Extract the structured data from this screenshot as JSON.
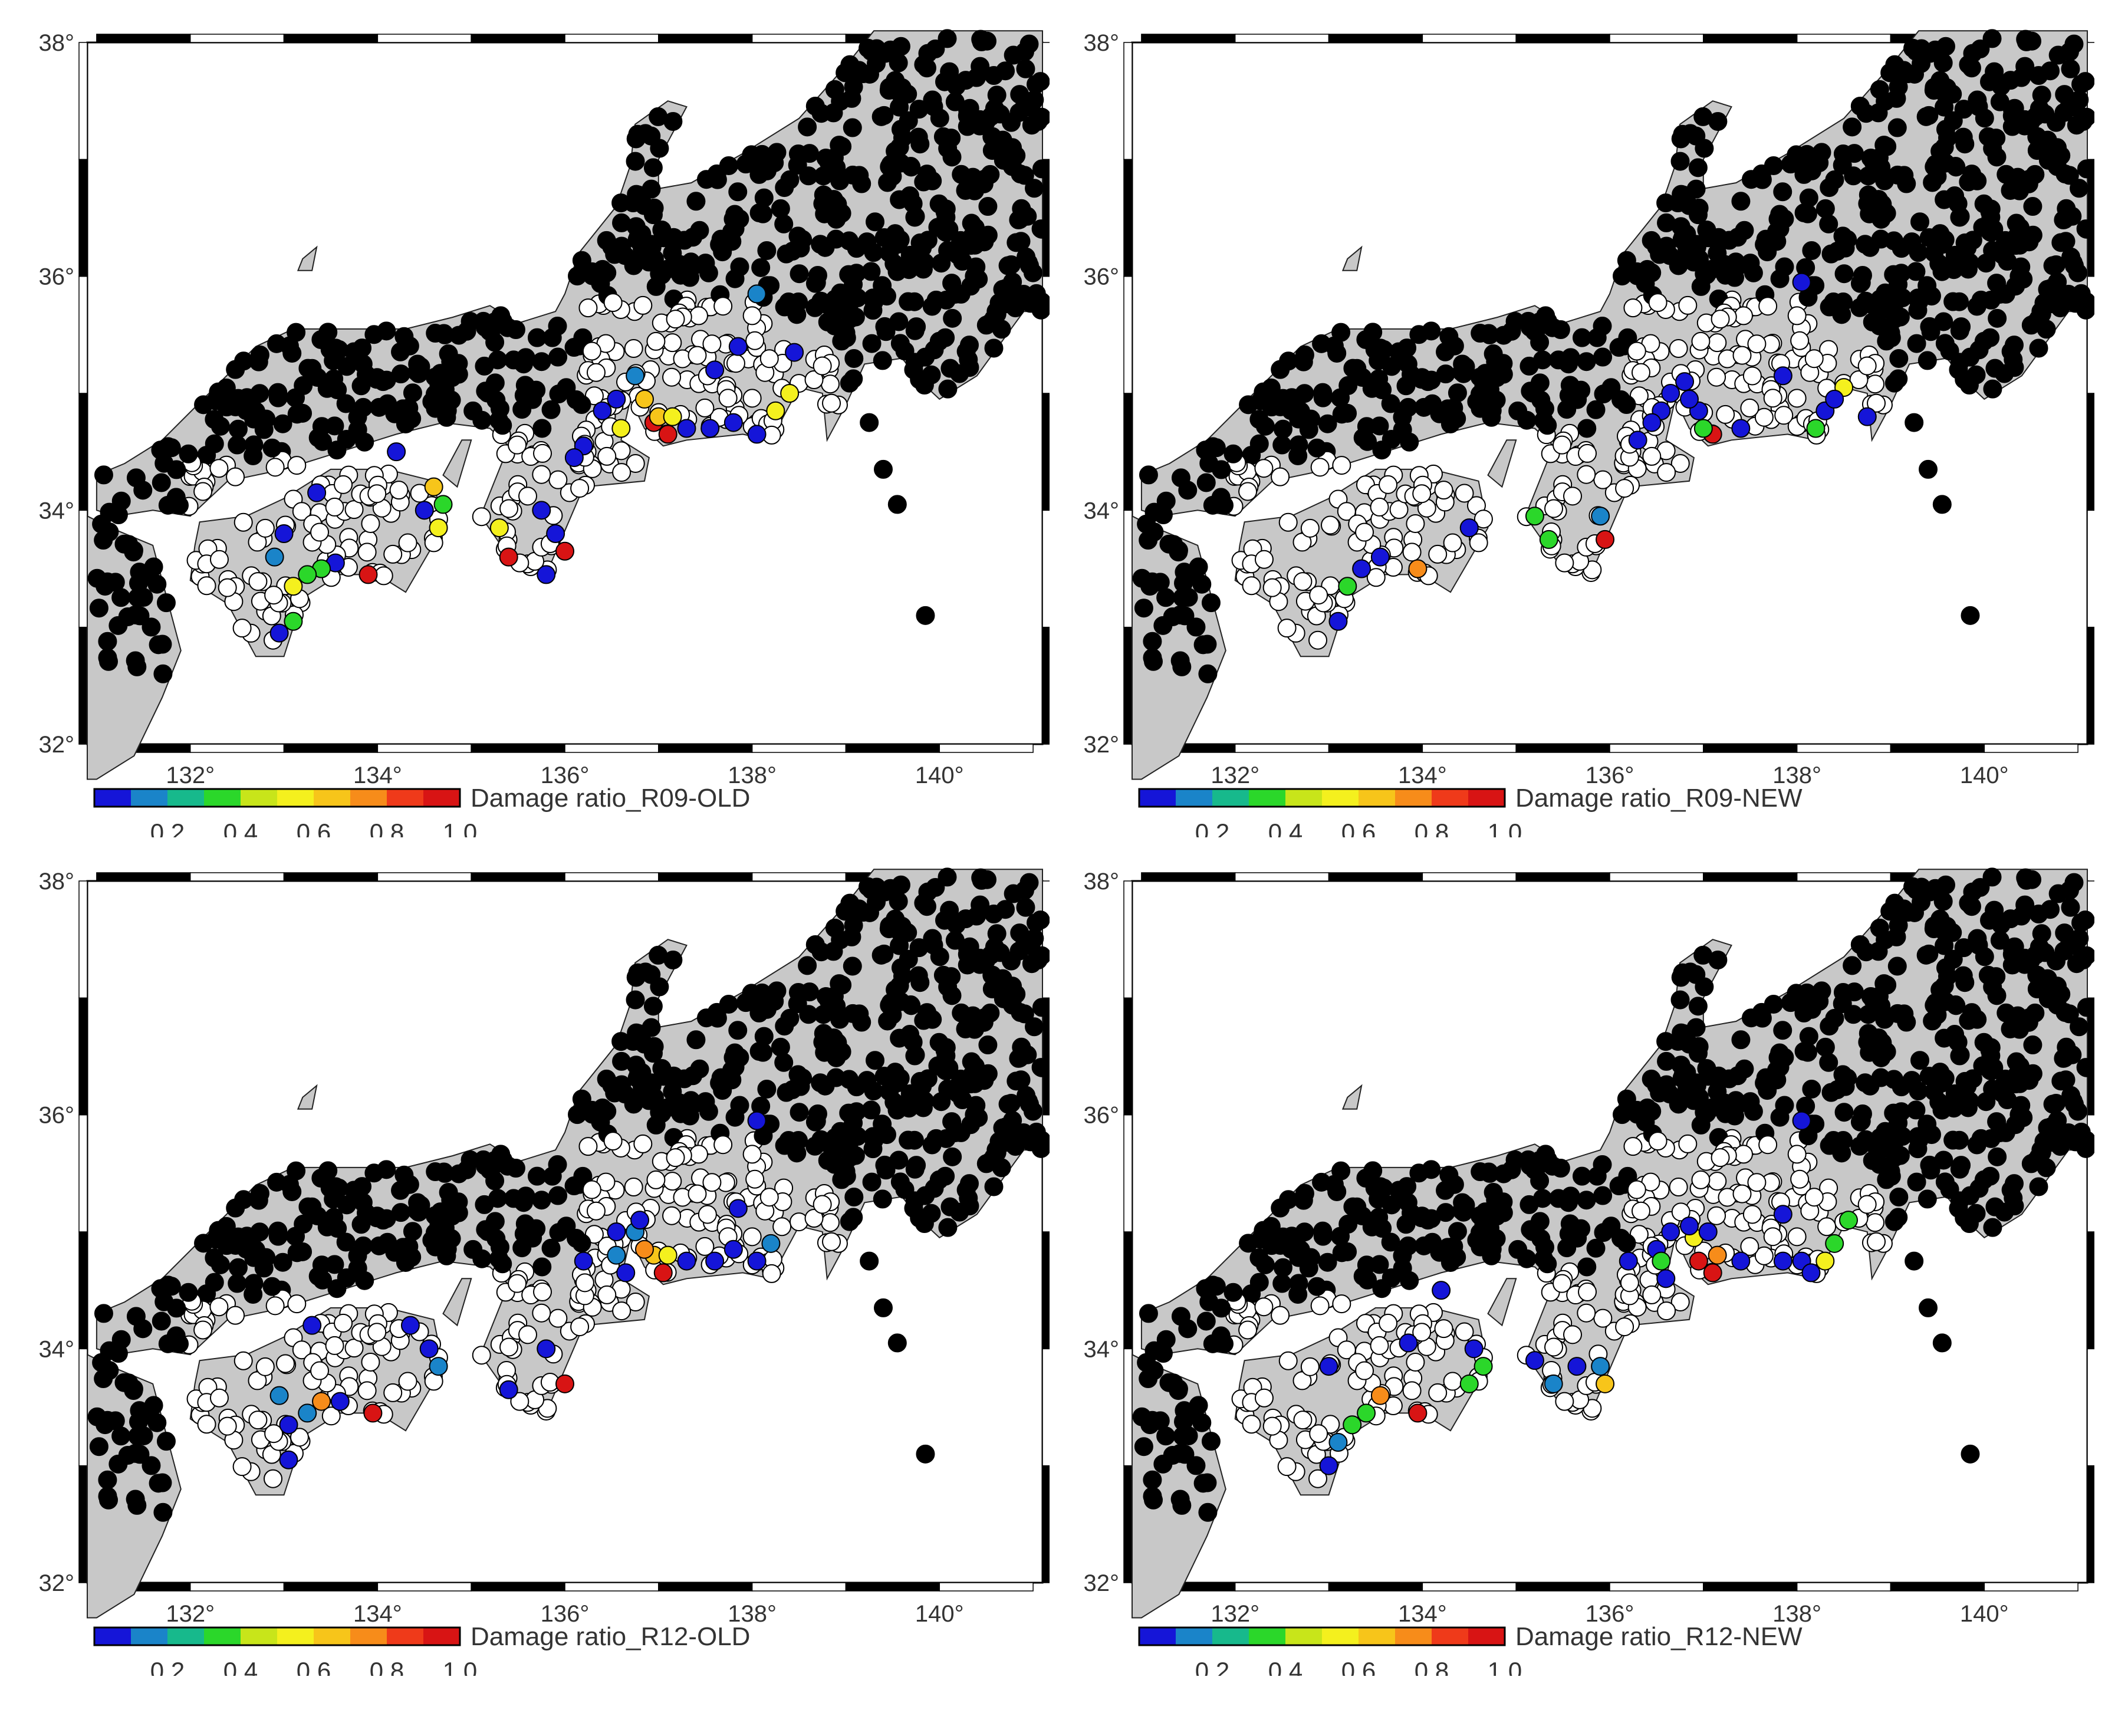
{
  "axes": {
    "lat_ticks": [
      {
        "value": 32,
        "label": "32°"
      },
      {
        "value": 34,
        "label": "34°"
      },
      {
        "value": 36,
        "label": "36°"
      },
      {
        "value": 38,
        "label": "38°"
      }
    ],
    "lon_ticks": [
      {
        "value": 132,
        "label": "132°"
      },
      {
        "value": 134,
        "label": "134°"
      },
      {
        "value": 136,
        "label": "136°"
      },
      {
        "value": 138,
        "label": "138°"
      },
      {
        "value": 140,
        "label": "140°"
      }
    ],
    "lon_range": [
      130.9,
      141.1
    ],
    "lat_range": [
      32,
      38
    ]
  },
  "colorbar": {
    "colors": [
      "#1515d8",
      "#1a84c9",
      "#17b98c",
      "#2bd72a",
      "#c8e51a",
      "#f4f01e",
      "#f7c51a",
      "#f78c1a",
      "#ef3a1a",
      "#d81414"
    ],
    "tick_labels": [
      "0.2",
      "0.4",
      "0.6",
      "0.8",
      "1.0"
    ],
    "range": [
      0,
      1
    ]
  },
  "panels": [
    {
      "title": "Damage ratio_R09-OLD",
      "stations": [
        {
          "lon": 136.95,
          "lat": 34.75,
          "r": 0.95
        },
        {
          "lon": 137.1,
          "lat": 34.65,
          "r": 0.9
        },
        {
          "lon": 137.0,
          "lat": 34.8,
          "r": 0.6
        },
        {
          "lon": 136.85,
          "lat": 34.95,
          "r": 0.65
        },
        {
          "lon": 137.15,
          "lat": 34.8,
          "r": 0.55
        },
        {
          "lon": 136.75,
          "lat": 35.15,
          "r": 0.1
        },
        {
          "lon": 136.55,
          "lat": 34.95,
          "r": 0.05
        },
        {
          "lon": 136.4,
          "lat": 34.85,
          "r": 0.05
        },
        {
          "lon": 137.3,
          "lat": 34.7,
          "r": 0.05
        },
        {
          "lon": 137.55,
          "lat": 34.7,
          "r": 0.05
        },
        {
          "lon": 137.8,
          "lat": 34.75,
          "r": 0.05
        },
        {
          "lon": 138.05,
          "lat": 34.65,
          "r": 0.05
        },
        {
          "lon": 138.25,
          "lat": 34.85,
          "r": 0.5
        },
        {
          "lon": 138.4,
          "lat": 35.0,
          "r": 0.5
        },
        {
          "lon": 136.6,
          "lat": 34.7,
          "r": 0.5
        },
        {
          "lon": 137.85,
          "lat": 35.4,
          "r": 0.05
        },
        {
          "lon": 138.05,
          "lat": 35.85,
          "r": 0.1
        },
        {
          "lon": 138.45,
          "lat": 35.35,
          "r": 0.05
        },
        {
          "lon": 136.2,
          "lat": 34.55,
          "r": 0.05
        },
        {
          "lon": 136.1,
          "lat": 34.45,
          "r": 0.05
        },
        {
          "lon": 135.75,
          "lat": 34.0,
          "r": 0.05
        },
        {
          "lon": 135.9,
          "lat": 33.8,
          "r": 0.05
        },
        {
          "lon": 136.0,
          "lat": 33.65,
          "r": 0.9
        },
        {
          "lon": 135.4,
          "lat": 33.6,
          "r": 0.95
        },
        {
          "lon": 135.3,
          "lat": 33.85,
          "r": 0.5
        },
        {
          "lon": 135.8,
          "lat": 33.45,
          "r": 0.05
        },
        {
          "lon": 134.65,
          "lat": 33.85,
          "r": 0.55
        },
        {
          "lon": 134.7,
          "lat": 34.05,
          "r": 0.3
        },
        {
          "lon": 134.6,
          "lat": 34.2,
          "r": 0.6
        },
        {
          "lon": 134.5,
          "lat": 34.0,
          "r": 0.05
        },
        {
          "lon": 133.9,
          "lat": 33.45,
          "r": 0.95
        },
        {
          "lon": 133.55,
          "lat": 33.55,
          "r": 0.05
        },
        {
          "lon": 133.4,
          "lat": 33.5,
          "r": 0.3
        },
        {
          "lon": 133.25,
          "lat": 33.45,
          "r": 0.35
        },
        {
          "lon": 133.1,
          "lat": 33.35,
          "r": 0.5
        },
        {
          "lon": 132.9,
          "lat": 33.6,
          "r": 0.1
        },
        {
          "lon": 133.1,
          "lat": 33.05,
          "r": 0.3
        },
        {
          "lon": 132.95,
          "lat": 32.95,
          "r": 0.05
        },
        {
          "lon": 133.35,
          "lat": 34.15,
          "r": 0.05
        },
        {
          "lon": 134.2,
          "lat": 34.5,
          "r": 0.05
        },
        {
          "lon": 133.0,
          "lat": 33.8,
          "r": 0.05
        },
        {
          "lon": 137.6,
          "lat": 35.2,
          "r": 0.05
        }
      ]
    },
    {
      "title": "Damage ratio_R09-NEW",
      "stations": [
        {
          "lon": 137.1,
          "lat": 34.65,
          "r": 0.95
        },
        {
          "lon": 137.0,
          "lat": 34.7,
          "r": 0.3
        },
        {
          "lon": 136.95,
          "lat": 34.85,
          "r": 0.05
        },
        {
          "lon": 136.85,
          "lat": 34.95,
          "r": 0.05
        },
        {
          "lon": 136.8,
          "lat": 35.1,
          "r": 0.05
        },
        {
          "lon": 136.65,
          "lat": 35.0,
          "r": 0.05
        },
        {
          "lon": 136.55,
          "lat": 34.85,
          "r": 0.05
        },
        {
          "lon": 136.45,
          "lat": 34.75,
          "r": 0.05
        },
        {
          "lon": 136.3,
          "lat": 34.6,
          "r": 0.05
        },
        {
          "lon": 137.4,
          "lat": 34.7,
          "r": 0.05
        },
        {
          "lon": 138.2,
          "lat": 34.7,
          "r": 0.3
        },
        {
          "lon": 138.3,
          "lat": 34.85,
          "r": 0.05
        },
        {
          "lon": 138.5,
          "lat": 35.05,
          "r": 0.5
        },
        {
          "lon": 138.4,
          "lat": 34.95,
          "r": 0.05
        },
        {
          "lon": 138.75,
          "lat": 34.8,
          "r": 0.05
        },
        {
          "lon": 138.05,
          "lat": 35.95,
          "r": 0.05
        },
        {
          "lon": 137.85,
          "lat": 35.15,
          "r": 0.05
        },
        {
          "lon": 135.95,
          "lat": 33.75,
          "r": 0.95
        },
        {
          "lon": 135.9,
          "lat": 33.95,
          "r": 0.1
        },
        {
          "lon": 135.35,
          "lat": 33.75,
          "r": 0.3
        },
        {
          "lon": 135.2,
          "lat": 33.95,
          "r": 0.3
        },
        {
          "lon": 134.5,
          "lat": 33.85,
          "r": 0.05
        },
        {
          "lon": 133.95,
          "lat": 33.5,
          "r": 0.7
        },
        {
          "lon": 133.55,
          "lat": 33.6,
          "r": 0.05
        },
        {
          "lon": 133.35,
          "lat": 33.5,
          "r": 0.05
        },
        {
          "lon": 133.2,
          "lat": 33.35,
          "r": 0.3
        },
        {
          "lon": 133.1,
          "lat": 33.05,
          "r": 0.05
        }
      ]
    },
    {
      "title": "Damage ratio_R12-OLD",
      "stations": [
        {
          "lon": 137.05,
          "lat": 34.65,
          "r": 0.95
        },
        {
          "lon": 136.95,
          "lat": 34.8,
          "r": 0.6
        },
        {
          "lon": 137.1,
          "lat": 34.8,
          "r": 0.55
        },
        {
          "lon": 136.85,
          "lat": 34.85,
          "r": 0.7
        },
        {
          "lon": 136.75,
          "lat": 35.0,
          "r": 0.1
        },
        {
          "lon": 136.8,
          "lat": 35.1,
          "r": 0.05
        },
        {
          "lon": 136.55,
          "lat": 35.0,
          "r": 0.05
        },
        {
          "lon": 136.55,
          "lat": 34.8,
          "r": 0.1
        },
        {
          "lon": 136.65,
          "lat": 34.65,
          "r": 0.05
        },
        {
          "lon": 136.2,
          "lat": 34.75,
          "r": 0.05
        },
        {
          "lon": 137.3,
          "lat": 34.75,
          "r": 0.05
        },
        {
          "lon": 137.6,
          "lat": 34.75,
          "r": 0.05
        },
        {
          "lon": 137.8,
          "lat": 34.85,
          "r": 0.05
        },
        {
          "lon": 138.05,
          "lat": 34.75,
          "r": 0.05
        },
        {
          "lon": 138.2,
          "lat": 34.9,
          "r": 0.1
        },
        {
          "lon": 138.05,
          "lat": 35.95,
          "r": 0.05
        },
        {
          "lon": 137.85,
          "lat": 35.2,
          "r": 0.05
        },
        {
          "lon": 136.0,
          "lat": 33.7,
          "r": 0.95
        },
        {
          "lon": 135.8,
          "lat": 34.0,
          "r": 0.05
        },
        {
          "lon": 135.4,
          "lat": 33.65,
          "r": 0.05
        },
        {
          "lon": 134.65,
          "lat": 33.85,
          "r": 0.15
        },
        {
          "lon": 134.55,
          "lat": 34.0,
          "r": 0.05
        },
        {
          "lon": 134.35,
          "lat": 34.2,
          "r": 0.05
        },
        {
          "lon": 133.95,
          "lat": 33.45,
          "r": 0.95
        },
        {
          "lon": 133.6,
          "lat": 33.55,
          "r": 0.05
        },
        {
          "lon": 133.4,
          "lat": 33.55,
          "r": 0.7
        },
        {
          "lon": 133.25,
          "lat": 33.45,
          "r": 0.1
        },
        {
          "lon": 133.05,
          "lat": 33.35,
          "r": 0.05
        },
        {
          "lon": 132.95,
          "lat": 33.6,
          "r": 0.15
        },
        {
          "lon": 133.05,
          "lat": 33.05,
          "r": 0.05
        },
        {
          "lon": 133.3,
          "lat": 34.2,
          "r": 0.05
        }
      ]
    },
    {
      "title": "Damage ratio_R12-NEW",
      "stations": [
        {
          "lon": 137.1,
          "lat": 34.65,
          "r": 0.95
        },
        {
          "lon": 137.15,
          "lat": 34.8,
          "r": 0.75
        },
        {
          "lon": 136.95,
          "lat": 34.75,
          "r": 0.9
        },
        {
          "lon": 136.9,
          "lat": 34.95,
          "r": 0.5
        },
        {
          "lon": 137.05,
          "lat": 35.0,
          "r": 0.05
        },
        {
          "lon": 136.85,
          "lat": 35.05,
          "r": 0.05
        },
        {
          "lon": 136.65,
          "lat": 35.0,
          "r": 0.05
        },
        {
          "lon": 136.5,
          "lat": 34.85,
          "r": 0.05
        },
        {
          "lon": 136.55,
          "lat": 34.75,
          "r": 0.3
        },
        {
          "lon": 136.6,
          "lat": 34.6,
          "r": 0.05
        },
        {
          "lon": 136.2,
          "lat": 34.75,
          "r": 0.05
        },
        {
          "lon": 137.4,
          "lat": 34.75,
          "r": 0.05
        },
        {
          "lon": 137.85,
          "lat": 34.75,
          "r": 0.05
        },
        {
          "lon": 138.05,
          "lat": 34.75,
          "r": 0.05
        },
        {
          "lon": 138.15,
          "lat": 34.65,
          "r": 0.05
        },
        {
          "lon": 138.3,
          "lat": 34.75,
          "r": 0.5
        },
        {
          "lon": 138.4,
          "lat": 34.9,
          "r": 0.35
        },
        {
          "lon": 138.55,
          "lat": 35.1,
          "r": 0.3
        },
        {
          "lon": 138.05,
          "lat": 35.95,
          "r": 0.05
        },
        {
          "lon": 137.85,
          "lat": 35.15,
          "r": 0.05
        },
        {
          "lon": 135.95,
          "lat": 33.7,
          "r": 0.65
        },
        {
          "lon": 135.9,
          "lat": 33.85,
          "r": 0.1
        },
        {
          "lon": 135.65,
          "lat": 33.85,
          "r": 0.05
        },
        {
          "lon": 135.4,
          "lat": 33.7,
          "r": 0.15
        },
        {
          "lon": 135.2,
          "lat": 33.9,
          "r": 0.05
        },
        {
          "lon": 134.65,
          "lat": 33.85,
          "r": 0.3
        },
        {
          "lon": 134.5,
          "lat": 33.7,
          "r": 0.3
        },
        {
          "lon": 134.55,
          "lat": 34.0,
          "r": 0.05
        },
        {
          "lon": 134.2,
          "lat": 34.5,
          "r": 0.05
        },
        {
          "lon": 133.95,
          "lat": 33.45,
          "r": 0.95
        },
        {
          "lon": 133.55,
          "lat": 33.6,
          "r": 0.75
        },
        {
          "lon": 133.4,
          "lat": 33.45,
          "r": 0.3
        },
        {
          "lon": 133.25,
          "lat": 33.35,
          "r": 0.3
        },
        {
          "lon": 133.1,
          "lat": 33.2,
          "r": 0.1
        },
        {
          "lon": 133.0,
          "lat": 33.0,
          "r": 0.05
        },
        {
          "lon": 133.0,
          "lat": 33.85,
          "r": 0.05
        },
        {
          "lon": 133.85,
          "lat": 34.05,
          "r": 0.05
        }
      ]
    }
  ]
}
